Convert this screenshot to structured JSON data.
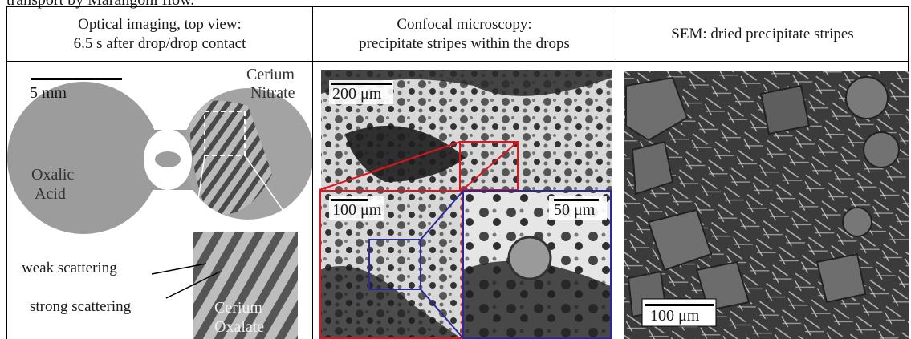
{
  "page_cut_text": "transport by Marangoni flow.",
  "columns": [
    {
      "heading_line1": "Optical imaging, top view:",
      "heading_line2": "6.5 s after drop/drop contact"
    },
    {
      "heading_line1": "Confocal microscopy:",
      "heading_line2": "precipitate stripes within the drops"
    },
    {
      "heading_line1": "SEM: dried precipitate stripes",
      "heading_line2": ""
    }
  ],
  "optical": {
    "scale_label": "5 mm",
    "left_drop_label_1": "Oxalic",
    "left_drop_label_2": "Acid",
    "right_drop_label_1": "Cerium",
    "right_drop_label_2": "Nitrate",
    "inset_label_1": "Cerium",
    "inset_label_2": "Oxalate",
    "weak_label": "weak scattering",
    "strong_label": "strong scattering"
  },
  "confocal": {
    "top_scale": "200 μm",
    "bottom_left_scale": "100 μm",
    "bottom_right_scale": "50 μm"
  },
  "sem": {
    "scale": "100 μm"
  },
  "colors": {
    "red_box": "#e0141e",
    "blue_box": "#2a2a9a",
    "optical_gray": "#9c9c9c",
    "sem_dark": "#2b2b2b"
  }
}
